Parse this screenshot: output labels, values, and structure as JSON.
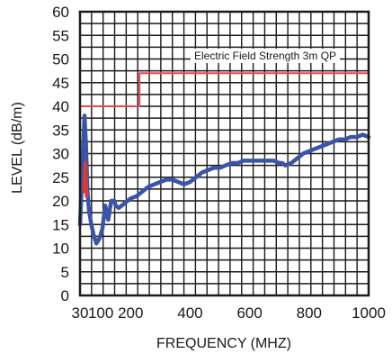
{
  "chart_data": {
    "type": "line",
    "xlabel": "FREQUENCY (MHZ)",
    "ylabel": "LEVEL (dB/m)",
    "xlim": [
      30,
      1000
    ],
    "ylim": [
      0,
      60
    ],
    "x_ticks": [
      30,
      100,
      200,
      400,
      600,
      800,
      1000
    ],
    "x_tick_labels": [
      "30",
      "100",
      "200",
      "400",
      "600",
      "800",
      "1000"
    ],
    "y_ticks": [
      0,
      5,
      10,
      15,
      20,
      25,
      30,
      35,
      40,
      45,
      50,
      55,
      60
    ],
    "y_tick_labels": [
      "0",
      "5",
      "10",
      "15",
      "20",
      "25",
      "30",
      "35",
      "40",
      "45",
      "50",
      "55",
      "60"
    ],
    "grid": true,
    "legend": {
      "label": "Electric Field Strength 3m QP",
      "placement": "top-right"
    },
    "colors": {
      "limit": "#e8474f",
      "measurement": "#3a55a8",
      "peak": "#d93a3a",
      "grid": "#1a1a1a"
    },
    "series": [
      {
        "name": "Electric Field Strength 3m QP",
        "role": "limit",
        "x": [
          30,
          230,
          230,
          1000
        ],
        "y": [
          40,
          40,
          47,
          47
        ]
      },
      {
        "role": "measurement",
        "x": [
          30,
          35,
          40,
          45,
          50,
          55,
          60,
          68,
          75,
          85,
          95,
          105,
          115,
          125,
          135,
          145,
          150,
          160,
          170,
          180,
          190,
          200,
          220,
          240,
          260,
          280,
          300,
          320,
          340,
          360,
          380,
          400,
          420,
          440,
          460,
          480,
          500,
          520,
          540,
          560,
          580,
          600,
          620,
          640,
          660,
          680,
          700,
          710,
          720,
          740,
          760,
          780,
          800,
          820,
          840,
          860,
          880,
          900,
          920,
          940,
          960,
          980,
          1000
        ],
        "y": [
          15,
          22,
          30,
          38,
          32,
          22,
          18,
          15,
          13,
          11,
          12,
          14,
          19,
          16,
          20,
          20,
          19,
          18.5,
          19,
          19.5,
          20,
          20.5,
          21,
          22,
          23,
          23.5,
          24,
          24.5,
          24.5,
          24,
          23.5,
          24,
          25,
          26,
          26.5,
          27,
          27,
          27.5,
          28,
          28,
          28.5,
          28.5,
          28.5,
          28.5,
          28.5,
          28.5,
          28,
          28,
          27.5,
          28,
          29,
          30,
          30.5,
          31,
          31.5,
          32,
          32.5,
          33,
          33,
          33.5,
          33.5,
          34,
          33.5
        ]
      },
      {
        "role": "peak",
        "x": [
          44,
          46,
          48,
          50,
          52
        ],
        "y": [
          22,
          26,
          28,
          25,
          21
        ]
      }
    ]
  }
}
